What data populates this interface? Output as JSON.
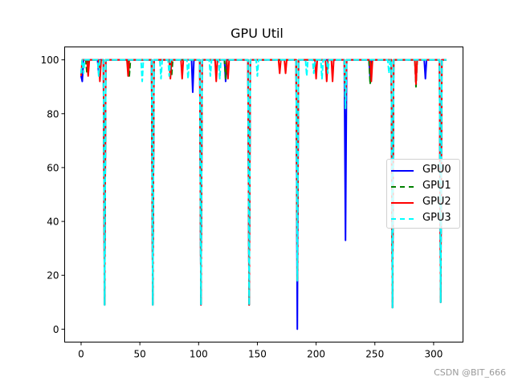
{
  "chart_data": {
    "type": "line",
    "title": "GPU Util",
    "xlabel": "",
    "ylabel": "",
    "xlim": [
      -14,
      325
    ],
    "ylim": [
      -4.8,
      104.8
    ],
    "xticks": [
      0,
      50,
      100,
      150,
      200,
      250,
      300
    ],
    "yticks": [
      0,
      20,
      40,
      60,
      80,
      100
    ],
    "grid": false,
    "legend_position": "center right",
    "baseline": 100,
    "x_range": [
      0,
      311
    ],
    "series": [
      {
        "name": "GPU0",
        "color": "#0000ff",
        "style": "solid",
        "dips": [
          [
            0,
            94
          ],
          [
            1,
            92
          ],
          [
            15,
            95
          ],
          [
            20,
            9
          ],
          [
            61,
            9
          ],
          [
            95,
            88
          ],
          [
            102,
            9
          ],
          [
            123,
            92
          ],
          [
            143,
            9
          ],
          [
            184,
            0
          ],
          [
            225,
            33
          ],
          [
            246,
            93
          ],
          [
            265,
            8
          ],
          [
            293,
            93
          ],
          [
            306,
            10
          ]
        ]
      },
      {
        "name": "GPU1",
        "color": "#008000",
        "style": "dashed",
        "dips": [
          [
            0,
            95
          ],
          [
            5,
            95
          ],
          [
            16,
            94
          ],
          [
            20,
            9
          ],
          [
            41,
            94
          ],
          [
            61,
            9
          ],
          [
            77,
            94
          ],
          [
            102,
            9
          ],
          [
            123,
            93
          ],
          [
            143,
            9
          ],
          [
            184,
            18
          ],
          [
            225,
            82
          ],
          [
            246,
            91
          ],
          [
            265,
            8
          ],
          [
            285,
            90
          ],
          [
            306,
            10
          ]
        ]
      },
      {
        "name": "GPU2",
        "color": "#ff0000",
        "style": "solid",
        "dips": [
          [
            0,
            94
          ],
          [
            6,
            94
          ],
          [
            16,
            92
          ],
          [
            20,
            9
          ],
          [
            40,
            94
          ],
          [
            61,
            9
          ],
          [
            76,
            93
          ],
          [
            86,
            93
          ],
          [
            102,
            9
          ],
          [
            115,
            92
          ],
          [
            125,
            93
          ],
          [
            143,
            9
          ],
          [
            169,
            95
          ],
          [
            174,
            95
          ],
          [
            184,
            18
          ],
          [
            200,
            93
          ],
          [
            209,
            92
          ],
          [
            214,
            92
          ],
          [
            225,
            82
          ],
          [
            247,
            92
          ],
          [
            265,
            8
          ],
          [
            285,
            91
          ],
          [
            306,
            10
          ]
        ]
      },
      {
        "name": "GPU3",
        "color": "#00ffff",
        "style": "dashed",
        "dips": [
          [
            0,
            95
          ],
          [
            2,
            95
          ],
          [
            15,
            94
          ],
          [
            20,
            9
          ],
          [
            52,
            92
          ],
          [
            61,
            9
          ],
          [
            68,
            93
          ],
          [
            75,
            94
          ],
          [
            91,
            93
          ],
          [
            102,
            9
          ],
          [
            110,
            94
          ],
          [
            118,
            93
          ],
          [
            143,
            9
          ],
          [
            150,
            94
          ],
          [
            184,
            18
          ],
          [
            192,
            94
          ],
          [
            198,
            95
          ],
          [
            205,
            93
          ],
          [
            210,
            95
          ],
          [
            225,
            82
          ],
          [
            262,
            95
          ],
          [
            265,
            8
          ],
          [
            306,
            10
          ]
        ]
      }
    ]
  },
  "figure": {
    "title": "GPU Util",
    "watermark": "CSDN @BIT_666"
  },
  "legend": {
    "items": [
      {
        "label": "GPU0",
        "color": "#0000ff",
        "style": "solid"
      },
      {
        "label": "GPU1",
        "color": "#008000",
        "style": "dashed"
      },
      {
        "label": "GPU2",
        "color": "#ff0000",
        "style": "solid"
      },
      {
        "label": "GPU3",
        "color": "#00ffff",
        "style": "dashed"
      }
    ]
  }
}
